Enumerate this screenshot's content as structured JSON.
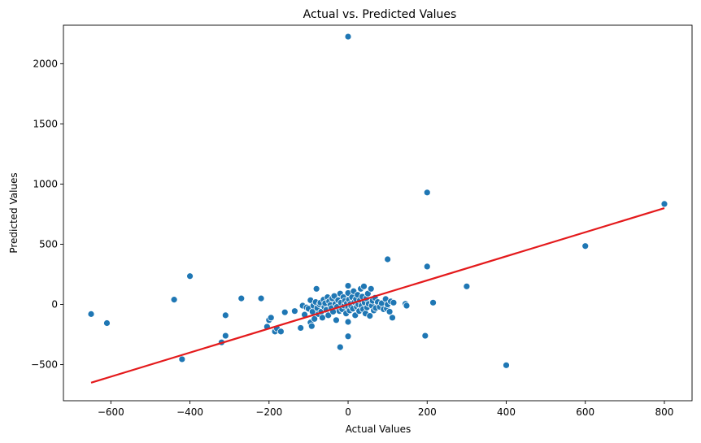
{
  "chart_data": {
    "type": "scatter",
    "title": "Actual vs. Predicted Values",
    "xlabel": "Actual Values",
    "ylabel": "Predicted Values",
    "xlim": [
      -720,
      870
    ],
    "ylim": [
      -800,
      2320
    ],
    "xticks": [
      -600,
      -400,
      -200,
      0,
      200,
      400,
      600,
      800
    ],
    "yticks": [
      -500,
      0,
      500,
      1000,
      1500,
      2000
    ],
    "xtick_labels": [
      "−600",
      "−400",
      "−200",
      "0",
      "200",
      "400",
      "600",
      "800"
    ],
    "ytick_labels": [
      "−500",
      "0",
      "500",
      "1000",
      "1500",
      "2000"
    ],
    "grid": false,
    "point_color": "#1f77b4",
    "reference_line": {
      "color": "#e41a1c",
      "x": [
        -650,
        800
      ],
      "y": [
        -650,
        800
      ]
    },
    "points": [
      {
        "x": -650,
        "y": -80
      },
      {
        "x": -610,
        "y": -155
      },
      {
        "x": -440,
        "y": 40
      },
      {
        "x": -420,
        "y": -455
      },
      {
        "x": -400,
        "y": 235
      },
      {
        "x": -320,
        "y": -315
      },
      {
        "x": -310,
        "y": -90
      },
      {
        "x": -310,
        "y": -260
      },
      {
        "x": -270,
        "y": 50
      },
      {
        "x": -220,
        "y": 50
      },
      {
        "x": -205,
        "y": -185
      },
      {
        "x": -200,
        "y": -130
      },
      {
        "x": -195,
        "y": -110
      },
      {
        "x": -185,
        "y": -225
      },
      {
        "x": -180,
        "y": -200
      },
      {
        "x": -170,
        "y": -225
      },
      {
        "x": -160,
        "y": -65
      },
      {
        "x": -135,
        "y": -55
      },
      {
        "x": -120,
        "y": -195
      },
      {
        "x": -115,
        "y": -10
      },
      {
        "x": -110,
        "y": -85
      },
      {
        "x": -105,
        "y": -25
      },
      {
        "x": -100,
        "y": -35
      },
      {
        "x": -95,
        "y": 35
      },
      {
        "x": -95,
        "y": -150
      },
      {
        "x": -92,
        "y": -180
      },
      {
        "x": -90,
        "y": -60
      },
      {
        "x": -88,
        "y": -10
      },
      {
        "x": -85,
        "y": -120
      },
      {
        "x": -82,
        "y": 20
      },
      {
        "x": -80,
        "y": 130
      },
      {
        "x": -78,
        "y": -30
      },
      {
        "x": -75,
        "y": -80
      },
      {
        "x": -72,
        "y": 0
      },
      {
        "x": -70,
        "y": 15
      },
      {
        "x": -68,
        "y": -60
      },
      {
        "x": -65,
        "y": -110
      },
      {
        "x": -62,
        "y": 40
      },
      {
        "x": -60,
        "y": -20
      },
      {
        "x": -58,
        "y": 10
      },
      {
        "x": -55,
        "y": -45
      },
      {
        "x": -52,
        "y": 60
      },
      {
        "x": -50,
        "y": -90
      },
      {
        "x": -48,
        "y": 25
      },
      {
        "x": -45,
        "y": -5
      },
      {
        "x": -42,
        "y": -30
      },
      {
        "x": -40,
        "y": 50
      },
      {
        "x": -38,
        "y": -60
      },
      {
        "x": -35,
        "y": 70
      },
      {
        "x": -32,
        "y": 5
      },
      {
        "x": -30,
        "y": -130
      },
      {
        "x": -28,
        "y": -20
      },
      {
        "x": -25,
        "y": 35
      },
      {
        "x": -22,
        "y": -55
      },
      {
        "x": -20,
        "y": 90
      },
      {
        "x": -18,
        "y": 15
      },
      {
        "x": -15,
        "y": -40
      },
      {
        "x": -12,
        "y": 60
      },
      {
        "x": -10,
        "y": -10
      },
      {
        "x": -8,
        "y": 30
      },
      {
        "x": -5,
        "y": -75
      },
      {
        "x": -3,
        "y": 10
      },
      {
        "x": 0,
        "y": 95
      },
      {
        "x": 0,
        "y": -25
      },
      {
        "x": 0,
        "y": 155
      },
      {
        "x": 2,
        "y": 40
      },
      {
        "x": 4,
        "y": -50
      },
      {
        "x": 6,
        "y": 5
      },
      {
        "x": 8,
        "y": -15
      },
      {
        "x": 10,
        "y": 60
      },
      {
        "x": 12,
        "y": -35
      },
      {
        "x": 14,
        "y": 110
      },
      {
        "x": 16,
        "y": 20
      },
      {
        "x": 18,
        "y": -90
      },
      {
        "x": 20,
        "y": 45
      },
      {
        "x": 22,
        "y": -20
      },
      {
        "x": 24,
        "y": 80
      },
      {
        "x": 26,
        "y": 0
      },
      {
        "x": 28,
        "y": -55
      },
      {
        "x": 30,
        "y": 35
      },
      {
        "x": 32,
        "y": 130
      },
      {
        "x": 34,
        "y": -10
      },
      {
        "x": 36,
        "y": 65
      },
      {
        "x": 38,
        "y": -40
      },
      {
        "x": 40,
        "y": 150
      },
      {
        "x": 42,
        "y": 15
      },
      {
        "x": 44,
        "y": -75
      },
      {
        "x": 46,
        "y": 50
      },
      {
        "x": 48,
        "y": -25
      },
      {
        "x": 50,
        "y": 90
      },
      {
        "x": 52,
        "y": 5
      },
      {
        "x": 55,
        "y": -95
      },
      {
        "x": 58,
        "y": 130
      },
      {
        "x": 60,
        "y": -10
      },
      {
        "x": 62,
        "y": 30
      },
      {
        "x": 65,
        "y": -50
      },
      {
        "x": 68,
        "y": 55
      },
      {
        "x": 70,
        "y": -30
      },
      {
        "x": 75,
        "y": 20
      },
      {
        "x": 80,
        "y": -20
      },
      {
        "x": 85,
        "y": 10
      },
      {
        "x": 90,
        "y": -40
      },
      {
        "x": 95,
        "y": 45
      },
      {
        "x": 98,
        "y": -35
      },
      {
        "x": 100,
        "y": 375
      },
      {
        "x": 100,
        "y": 0
      },
      {
        "x": 105,
        "y": -60
      },
      {
        "x": 108,
        "y": 25
      },
      {
        "x": 112,
        "y": -110
      },
      {
        "x": 115,
        "y": 15
      },
      {
        "x": 145,
        "y": 5
      },
      {
        "x": 148,
        "y": -10
      },
      {
        "x": 195,
        "y": -260
      },
      {
        "x": 200,
        "y": 930
      },
      {
        "x": 200,
        "y": 315
      },
      {
        "x": 215,
        "y": 15
      },
      {
        "x": 300,
        "y": 150
      },
      {
        "x": 400,
        "y": -505
      },
      {
        "x": 600,
        "y": 485
      },
      {
        "x": 800,
        "y": 835
      },
      {
        "x": 0,
        "y": 2225
      },
      {
        "x": -20,
        "y": -355
      },
      {
        "x": 0,
        "y": -265
      },
      {
        "x": 0,
        "y": -145
      }
    ]
  }
}
